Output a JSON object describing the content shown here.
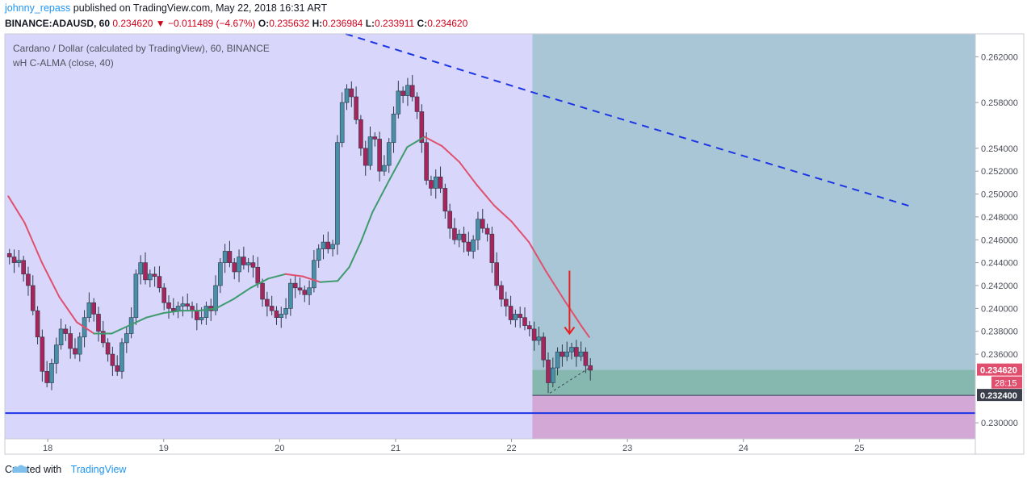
{
  "header": {
    "user": "johnny_repass",
    "published": "published on TradingView.com, May 22, 2018 16:31 ART",
    "symbol": "BINANCE:ADAUSD, 60",
    "last": "0.234620",
    "change_arrow": "▼",
    "change": "−0.011489 (−4.67%)",
    "o_label": "O:",
    "o_value": "0.235632",
    "h_label": "H:",
    "h_value": "0.236984",
    "l_label": "L:",
    "l_value": "0.233911",
    "c_label": "C:",
    "c_value": "0.234620"
  },
  "legend": {
    "title": "Cardano / Dollar (calculated by TradingView), 60, BINANCE",
    "indicator": "wH C-ALMA (close, 40)"
  },
  "footer": {
    "created_with": "Created with",
    "brand": "TradingView"
  },
  "colors": {
    "up": "#5b9bd5",
    "down": "#b5305a",
    "up_candle": "#4a8fa8",
    "down_candle": "#a8245a",
    "ma_up": "#3e9b6e",
    "ma_down": "#e0506e",
    "trendline": "#1a34e6",
    "support": "#1a34e6",
    "bg_left": "#d8d6fb",
    "bg_right": "#a9c6d6",
    "zone_green": "#86b8b0",
    "zone_pink": "#d3a8d6",
    "arrow": "#e62020",
    "price_label": "#e0506e"
  },
  "chart_data": {
    "type": "candlestick",
    "title": "Cardano / Dollar (calculated by TradingView), 60, BINANCE",
    "ylim": [
      0.2286,
      0.264
    ],
    "xlim": [
      17.63,
      26.0
    ],
    "x_ticks": [
      18,
      19,
      20,
      21,
      22,
      23,
      24,
      25
    ],
    "x_tick_labels": [
      "18",
      "19",
      "20",
      "21",
      "22",
      "23",
      "24",
      "25"
    ],
    "y_ticks": [
      0.23,
      0.236,
      0.238,
      0.24,
      0.242,
      0.244,
      0.246,
      0.248,
      0.25,
      0.252,
      0.254,
      0.258,
      0.262
    ],
    "y_tick_labels": [
      "0.230000",
      "0.236000",
      "0.238000",
      "0.240000",
      "0.242000",
      "0.244000",
      "0.246000",
      "0.248000",
      "0.250000",
      "0.252000",
      "0.254000",
      "0.258000",
      "0.262000"
    ],
    "candle_closes": [
      0.2445,
      0.244,
      0.2442,
      0.243,
      0.242,
      0.2398,
      0.2375,
      0.2345,
      0.2335,
      0.2352,
      0.2368,
      0.2382,
      0.2378,
      0.2365,
      0.236,
      0.2375,
      0.2392,
      0.2405,
      0.2395,
      0.238,
      0.237,
      0.236,
      0.235,
      0.2345,
      0.237,
      0.2378,
      0.2392,
      0.243,
      0.244,
      0.2425,
      0.243,
      0.2428,
      0.2418,
      0.2405,
      0.24,
      0.2398,
      0.2402,
      0.2404,
      0.2402,
      0.2398,
      0.239,
      0.2392,
      0.2402,
      0.2398,
      0.242,
      0.244,
      0.245,
      0.244,
      0.2432,
      0.2445,
      0.2438,
      0.244,
      0.2436,
      0.2422,
      0.2408,
      0.2402,
      0.2398,
      0.2392,
      0.2395,
      0.24,
      0.2422,
      0.2418,
      0.2416,
      0.2412,
      0.2418,
      0.2442,
      0.2452,
      0.2458,
      0.2452,
      0.2456,
      0.2545,
      0.258,
      0.2592,
      0.2585,
      0.2565,
      0.254,
      0.2525,
      0.255,
      0.2548,
      0.252,
      0.2525,
      0.2545,
      0.257,
      0.259,
      0.2586,
      0.2595,
      0.2585,
      0.2572,
      0.2545,
      0.2512,
      0.2505,
      0.2515,
      0.2505,
      0.2485,
      0.247,
      0.246,
      0.2465,
      0.2458,
      0.245,
      0.246,
      0.2478,
      0.247,
      0.2465,
      0.244,
      0.242,
      0.2408,
      0.2402,
      0.239,
      0.2395,
      0.2392,
      0.2385,
      0.2382,
      0.2372,
      0.2375,
      0.2355,
      0.2335,
      0.2348,
      0.2362,
      0.2358,
      0.2362,
      0.2366,
      0.2358,
      0.2362,
      0.235,
      0.2346
    ],
    "alma_line": {
      "x": [
        17.66,
        17.8,
        17.95,
        18.1,
        18.25,
        18.4,
        18.55,
        18.7,
        18.85,
        19.0,
        19.15,
        19.3,
        19.45,
        19.6,
        19.75,
        19.9,
        20.05,
        20.2,
        20.35,
        20.5,
        20.6,
        20.7,
        20.8,
        20.95,
        21.1,
        21.25,
        21.4,
        21.55,
        21.7,
        21.85,
        22.0,
        22.15,
        22.3,
        22.45,
        22.6,
        22.67
      ],
      "y": [
        0.2498,
        0.2475,
        0.244,
        0.241,
        0.2388,
        0.2378,
        0.2378,
        0.2385,
        0.2392,
        0.2396,
        0.2398,
        0.2398,
        0.24,
        0.2408,
        0.2418,
        0.2426,
        0.243,
        0.2428,
        0.2423,
        0.2424,
        0.2436,
        0.2458,
        0.2484,
        0.2513,
        0.2541,
        0.255,
        0.2542,
        0.2528,
        0.2508,
        0.249,
        0.2476,
        0.2458,
        0.2432,
        0.2408,
        0.2385,
        0.2375
      ]
    },
    "annotations": {
      "trendline_start": {
        "x": 21.03,
        "y": 0.2617,
        "value_note": "dashed line from (20.57, 0.2640)"
      },
      "trendline": {
        "x": [
          20.57,
          22.18,
          25.45
        ],
        "y": [
          0.264,
          0.2589,
          0.2489
        ]
      },
      "support_level": 0.23085,
      "entry_level": 0.2324,
      "shaded_start_x": 22.18,
      "green_zone": [
        0.2324,
        0.23462
      ],
      "pink_zone": [
        0.2286,
        0.2324
      ],
      "arrow_x": 22.5,
      "arrow_from": 0.2433,
      "arrow_to": 0.2378
    },
    "price_labels": [
      {
        "value": "0.234620",
        "kind": "last"
      },
      {
        "value": "28:15",
        "kind": "countdown"
      },
      {
        "value": "0.232400",
        "kind": "level"
      }
    ]
  }
}
